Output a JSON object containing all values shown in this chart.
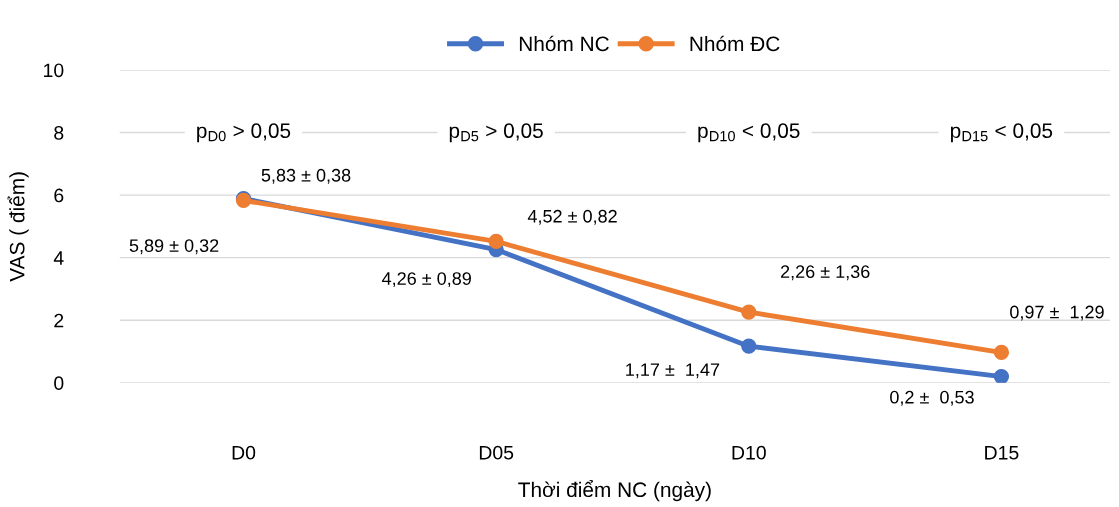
{
  "chart_data": {
    "type": "line",
    "xlabel": "Thời điểm NC (ngày)",
    "ylabel": "VAS ( điểm)",
    "categories": [
      "D0",
      "D05",
      "D10",
      "D15"
    ],
    "series": [
      {
        "name": "Nhóm NC",
        "color": "#4472c4",
        "values": [
          5.89,
          4.26,
          1.17,
          0.2
        ],
        "value_labels": [
          "5,89 ± 0,32",
          "4,26 ± 0,89",
          "1,17 ±  1,47",
          "0,2 ±  0,53"
        ]
      },
      {
        "name": "Nhóm ĐC",
        "color": "#ed7d31",
        "values": [
          5.83,
          4.52,
          2.26,
          0.97
        ],
        "value_labels": [
          "5,83 ± 0,38",
          "4,52 ± 0,82",
          "2,26 ± 1,36",
          "0,97 ±  1,29"
        ]
      }
    ],
    "annotations": [
      "p$_{D0}$ > 0,05",
      "p$_{D5}$ > 0,05",
      "p$_{D10}$ < 0,05",
      "p$_{D15}$ < 0,05"
    ],
    "ylim": [
      0,
      10
    ],
    "yticks": [
      0,
      2,
      4,
      6,
      8,
      10
    ],
    "grid": "y",
    "legend": "top",
    "marker": "circle",
    "line_style": "solid"
  }
}
